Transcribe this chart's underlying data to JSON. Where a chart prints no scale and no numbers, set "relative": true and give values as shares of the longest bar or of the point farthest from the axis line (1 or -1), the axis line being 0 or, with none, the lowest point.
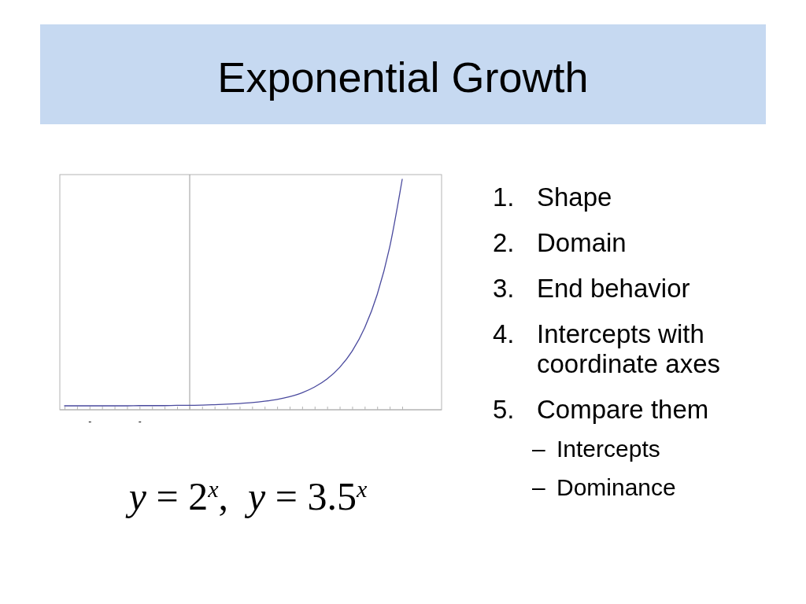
{
  "chart_data": {
    "type": "line",
    "title": "Exponential Growth",
    "categories": [
      null,
      null,
      "-",
      null,
      null,
      null,
      "-",
      null,
      null,
      null,
      null,
      null,
      null,
      null,
      null,
      null,
      null,
      null,
      null,
      null,
      null,
      null,
      null,
      null,
      null,
      null,
      null,
      null
    ],
    "values": [
      0.017,
      0.017,
      0.017,
      0.017,
      0.017,
      0.017,
      0.018,
      0.018,
      0.018,
      0.019,
      0.019,
      0.02,
      0.022,
      0.024,
      0.027,
      0.031,
      0.037,
      0.045,
      0.057,
      0.074,
      0.099,
      0.134,
      0.184,
      0.255,
      0.356,
      0.5,
      0.706,
      1
    ],
    "color": "#4a4a9e",
    "relative": true,
    "annotations": [
      "1. Shape",
      "2. Domain",
      "3. End behavior",
      "4. Intercepts with coordinate axes",
      "5. Compare them",
      "– Intercepts",
      "– Dominance",
      "y = 2$^{x}$,  y = 3.5$^{x}$"
    ]
  }
}
